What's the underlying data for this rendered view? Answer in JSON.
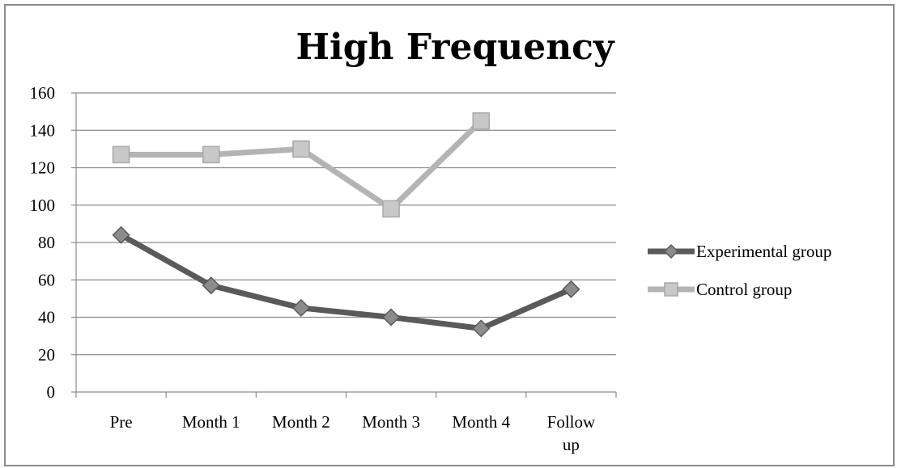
{
  "chart_data": {
    "type": "line",
    "title": "High Frequency",
    "xlabel": "",
    "ylabel": "",
    "ylim": [
      0,
      160
    ],
    "yticks": [
      0,
      20,
      40,
      60,
      80,
      100,
      120,
      140,
      160
    ],
    "categories": [
      [
        "Pre"
      ],
      [
        "Month 1"
      ],
      [
        "Month 2"
      ],
      [
        "Month 3"
      ],
      [
        "Month 4"
      ],
      [
        "Follow",
        "up"
      ]
    ],
    "series": [
      {
        "name": "Experimental group",
        "values": [
          84,
          57,
          45,
          40,
          34,
          55
        ],
        "color": "#5a5a5a",
        "marker": "diamond"
      },
      {
        "name": "Control group",
        "values": [
          127,
          127,
          130,
          98,
          145,
          null
        ],
        "color": "#b4b4b4",
        "marker": "square"
      }
    ],
    "grid": true,
    "legend": "right"
  }
}
